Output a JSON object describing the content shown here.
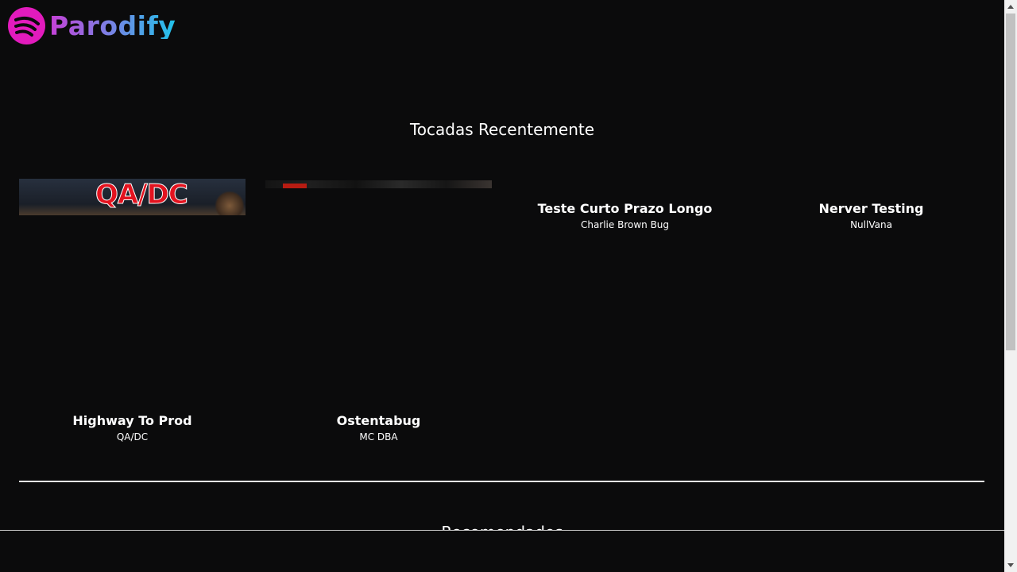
{
  "app": {
    "logo_text": "Parodify",
    "logo_icon": "spotify-like-wave-icon",
    "brand_color": "#e21bbd"
  },
  "recent": {
    "title": "Tocadas Recentemente",
    "items": [
      {
        "title": "Highway To Prod",
        "artist": "QA/DC",
        "art_text": "QA/DC"
      },
      {
        "title": "Ostentabug",
        "artist": "MC DBA",
        "art_text": ""
      },
      {
        "title": "Teste Curto Prazo Longo",
        "artist": "Charlie Brown Bug"
      },
      {
        "title": "Nerver Testing",
        "artist": "NullVana"
      }
    ]
  },
  "recommended": {
    "title": "Recomendados"
  },
  "scrollbar": {
    "thumb_fraction": 0.6
  }
}
